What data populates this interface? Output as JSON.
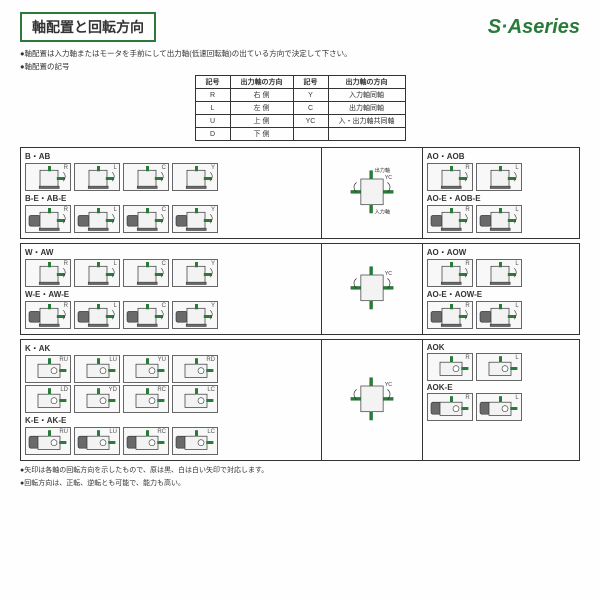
{
  "header": {
    "title": "軸配置と回転方向",
    "series": "S·Aseries"
  },
  "instructions": [
    "軸配置は入力軸またはモータを手前にして出力軸(低速回転軸)の出ている方向で決定して下さい。",
    "軸配置の記号"
  ],
  "table": {
    "cols": [
      "記号",
      "出力軸の方向",
      "記号",
      "出力軸の方向"
    ],
    "rows": [
      [
        "R",
        "右 側",
        "Y",
        "入力軸同軸"
      ],
      [
        "L",
        "左 側",
        "C",
        "出力軸同軸"
      ],
      [
        "U",
        "上 側",
        "YC",
        "入・出力軸共同軸"
      ],
      [
        "D",
        "下 側",
        "",
        ""
      ]
    ]
  },
  "colors": {
    "accent": "#2a7a3a",
    "line": "#333333",
    "body": "#6a6a6a",
    "shaft": "#2a7a3a"
  },
  "panels": [
    {
      "left": [
        {
          "label": "B・AB",
          "tags": [
            "R",
            "L",
            "C",
            "Y"
          ],
          "style": "v"
        },
        {
          "label": "B-E・AB-E",
          "tags": [
            "R",
            "L",
            "C",
            "Y"
          ],
          "style": "ve"
        }
      ],
      "mid": {
        "top": "出力軸",
        "bottom": "入力軸",
        "style": "v",
        "tag": "YC"
      },
      "right": [
        {
          "label": "AO・AOB",
          "tags": [
            "R",
            "L"
          ],
          "style": "v"
        },
        {
          "label": "AO-E・AOB-E",
          "tags": [
            "R",
            "L"
          ],
          "style": "ve"
        }
      ]
    },
    {
      "left": [
        {
          "label": "W・AW",
          "tags": [
            "R",
            "L",
            "C",
            "Y"
          ],
          "style": "v"
        },
        {
          "label": "W-E・AW-E",
          "tags": [
            "R",
            "L",
            "C",
            "Y"
          ],
          "style": "ve"
        }
      ],
      "mid": {
        "style": "v",
        "tag": "YC"
      },
      "right": [
        {
          "label": "AO・AOW",
          "tags": [
            "R",
            "L"
          ],
          "style": "v"
        },
        {
          "label": "AO-E・AOW-E",
          "tags": [
            "R",
            "L"
          ],
          "style": "ve"
        }
      ]
    },
    {
      "left": [
        {
          "label": "K・AK",
          "tags": [
            "RU",
            "LU",
            "YU",
            "RD",
            "LD",
            "YD",
            "RC",
            "LC"
          ],
          "style": "h",
          "cols": 4
        },
        {
          "label": "K-E・AK-E",
          "tags": [
            "RU",
            "LU",
            "RC",
            "LC"
          ],
          "style": "he"
        }
      ],
      "mid": {
        "style": "h",
        "tag": "YC"
      },
      "right": [
        {
          "label": "AOK",
          "tags": [
            "R",
            "L"
          ],
          "style": "h"
        },
        {
          "label": "AOK-E",
          "tags": [
            "R",
            "L"
          ],
          "style": "he"
        }
      ]
    }
  ],
  "footnotes": [
    "矢印は各軸の回転方向を示したもので、原は黒、白は白い矢印で対応します。",
    "回転方向は、正転、逆転とも可能で、能力も高い。"
  ]
}
